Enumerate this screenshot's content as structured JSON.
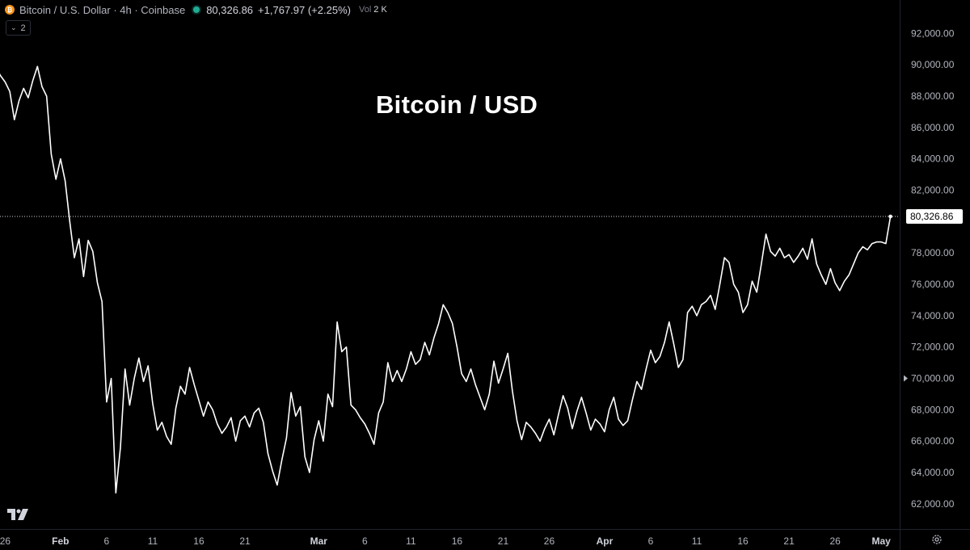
{
  "header": {
    "symbol": "Bitcoin / U.S. Dollar · 4h · Coinbase",
    "coin_icon": "bitcoin-icon",
    "last_price": "80,326.86",
    "change": "+1,767.97 (+2.25%)",
    "volume_label": "Vol",
    "volume_value": "2 K",
    "indicator_count": "2"
  },
  "overlay_title": "Bitcoin / USD",
  "colors": {
    "background": "#000000",
    "line": "#ffffff",
    "axis_text": "#b2b5be",
    "live_dot": "#22ab94",
    "coin": "#f7931a"
  },
  "chart_data": {
    "type": "line",
    "title": "Bitcoin / USD",
    "xlabel": "",
    "ylabel": "",
    "x_axis": "date (2025, 4h candles)",
    "x_range": [
      "2025-01-25",
      "2025-05-03"
    ],
    "ylim": [
      60500,
      93000
    ],
    "grid": false,
    "x_ticks": [
      {
        "label": "26",
        "date": "2025-01-26"
      },
      {
        "label": "Feb",
        "date": "2025-02-01",
        "bold": true
      },
      {
        "label": "6",
        "date": "2025-02-06"
      },
      {
        "label": "11",
        "date": "2025-02-11"
      },
      {
        "label": "16",
        "date": "2025-02-16"
      },
      {
        "label": "21",
        "date": "2025-02-21"
      },
      {
        "label": "Mar",
        "date": "2025-03-01",
        "bold": true
      },
      {
        "label": "6",
        "date": "2025-03-06"
      },
      {
        "label": "11",
        "date": "2025-03-11"
      },
      {
        "label": "16",
        "date": "2025-03-16"
      },
      {
        "label": "21",
        "date": "2025-03-21"
      },
      {
        "label": "26",
        "date": "2025-03-26"
      },
      {
        "label": "Apr",
        "date": "2025-04-01",
        "bold": true
      },
      {
        "label": "6",
        "date": "2025-04-06"
      },
      {
        "label": "11",
        "date": "2025-04-11"
      },
      {
        "label": "16",
        "date": "2025-04-16"
      },
      {
        "label": "21",
        "date": "2025-04-21"
      },
      {
        "label": "26",
        "date": "2025-04-26"
      },
      {
        "label": "May",
        "date": "2025-05-01",
        "bold": true
      }
    ],
    "y_ticks": [
      {
        "label": "62,000.00",
        "value": 62000
      },
      {
        "label": "64,000.00",
        "value": 64000
      },
      {
        "label": "66,000.00",
        "value": 66000
      },
      {
        "label": "68,000.00",
        "value": 68000
      },
      {
        "label": "70,000.00",
        "value": 70000
      },
      {
        "label": "72,000.00",
        "value": 72000
      },
      {
        "label": "74,000.00",
        "value": 74000
      },
      {
        "label": "76,000.00",
        "value": 76000
      },
      {
        "label": "78,000.00",
        "value": 78000
      },
      {
        "label": "82,000.00",
        "value": 82000
      },
      {
        "label": "84,000.00",
        "value": 84000
      },
      {
        "label": "86,000.00",
        "value": 86000
      },
      {
        "label": "88,000.00",
        "value": 88000
      },
      {
        "label": "90,000.00",
        "value": 90000
      },
      {
        "label": "92,000.00",
        "value": 92000
      }
    ],
    "last_value": 80326.86,
    "last_value_label": "80,326.86",
    "series": [
      {
        "points": [
          [
            "2025-01-25 00:00",
            89800
          ],
          [
            "2025-01-25 12:00",
            89300
          ],
          [
            "2025-01-26 00:00",
            88900
          ],
          [
            "2025-01-26 12:00",
            88300
          ],
          [
            "2025-01-27 00:00",
            86500
          ],
          [
            "2025-01-27 12:00",
            87700
          ],
          [
            "2025-01-28 00:00",
            88500
          ],
          [
            "2025-01-28 12:00",
            87900
          ],
          [
            "2025-01-29 00:00",
            89000
          ],
          [
            "2025-01-29 12:00",
            89900
          ],
          [
            "2025-01-30 00:00",
            88600
          ],
          [
            "2025-01-30 12:00",
            88000
          ],
          [
            "2025-01-31 00:00",
            84300
          ],
          [
            "2025-01-31 12:00",
            82700
          ],
          [
            "2025-02-01 00:00",
            84000
          ],
          [
            "2025-02-01 12:00",
            82600
          ],
          [
            "2025-02-02 00:00",
            80000
          ],
          [
            "2025-02-02 12:00",
            77700
          ],
          [
            "2025-02-03 00:00",
            78900
          ],
          [
            "2025-02-03 12:00",
            76500
          ],
          [
            "2025-02-04 00:00",
            78800
          ],
          [
            "2025-02-04 12:00",
            78100
          ],
          [
            "2025-02-05 00:00",
            76100
          ],
          [
            "2025-02-05 12:00",
            74900
          ],
          [
            "2025-02-06 00:00",
            68500
          ],
          [
            "2025-02-06 12:00",
            70000
          ],
          [
            "2025-02-07 00:00",
            62700
          ],
          [
            "2025-02-07 12:00",
            65600
          ],
          [
            "2025-02-08 00:00",
            70600
          ],
          [
            "2025-02-08 12:00",
            68300
          ],
          [
            "2025-02-09 00:00",
            70000
          ],
          [
            "2025-02-09 12:00",
            71300
          ],
          [
            "2025-02-10 00:00",
            69800
          ],
          [
            "2025-02-10 12:00",
            70800
          ],
          [
            "2025-02-11 00:00",
            68400
          ],
          [
            "2025-02-11 12:00",
            66700
          ],
          [
            "2025-02-12 00:00",
            67200
          ],
          [
            "2025-02-12 12:00",
            66300
          ],
          [
            "2025-02-13 00:00",
            65800
          ],
          [
            "2025-02-13 12:00",
            68100
          ],
          [
            "2025-02-14 00:00",
            69500
          ],
          [
            "2025-02-14 12:00",
            69000
          ],
          [
            "2025-02-15 00:00",
            70700
          ],
          [
            "2025-02-15 12:00",
            69600
          ],
          [
            "2025-02-16 00:00",
            68600
          ],
          [
            "2025-02-16 12:00",
            67600
          ],
          [
            "2025-02-17 00:00",
            68500
          ],
          [
            "2025-02-17 12:00",
            68000
          ],
          [
            "2025-02-18 00:00",
            67100
          ],
          [
            "2025-02-18 12:00",
            66500
          ],
          [
            "2025-02-19 00:00",
            66900
          ],
          [
            "2025-02-19 12:00",
            67500
          ],
          [
            "2025-02-20 00:00",
            66000
          ],
          [
            "2025-02-20 12:00",
            67300
          ],
          [
            "2025-02-21 00:00",
            67600
          ],
          [
            "2025-02-21 12:00",
            66900
          ],
          [
            "2025-02-22 00:00",
            67800
          ],
          [
            "2025-02-22 12:00",
            68100
          ],
          [
            "2025-02-23 00:00",
            67200
          ],
          [
            "2025-02-23 12:00",
            65200
          ],
          [
            "2025-02-24 00:00",
            64100
          ],
          [
            "2025-02-24 12:00",
            63200
          ],
          [
            "2025-02-25 00:00",
            64800
          ],
          [
            "2025-02-25 12:00",
            66200
          ],
          [
            "2025-02-26 00:00",
            69100
          ],
          [
            "2025-02-26 12:00",
            67600
          ],
          [
            "2025-02-27 00:00",
            68200
          ],
          [
            "2025-02-27 12:00",
            65000
          ],
          [
            "2025-02-28 00:00",
            64000
          ],
          [
            "2025-02-28 12:00",
            66100
          ],
          [
            "2025-03-01 00:00",
            67300
          ],
          [
            "2025-03-01 12:00",
            66000
          ],
          [
            "2025-03-02 00:00",
            69000
          ],
          [
            "2025-03-02 12:00",
            68200
          ],
          [
            "2025-03-03 00:00",
            73600
          ],
          [
            "2025-03-03 12:00",
            71700
          ],
          [
            "2025-03-04 00:00",
            72000
          ],
          [
            "2025-03-04 12:00",
            68300
          ],
          [
            "2025-03-05 00:00",
            68000
          ],
          [
            "2025-03-05 12:00",
            67500
          ],
          [
            "2025-03-06 00:00",
            67100
          ],
          [
            "2025-03-06 12:00",
            66500
          ],
          [
            "2025-03-07 00:00",
            65800
          ],
          [
            "2025-03-07 12:00",
            67800
          ],
          [
            "2025-03-08 00:00",
            68500
          ],
          [
            "2025-03-08 12:00",
            71000
          ],
          [
            "2025-03-09 00:00",
            69800
          ],
          [
            "2025-03-09 12:00",
            70500
          ],
          [
            "2025-03-10 00:00",
            69800
          ],
          [
            "2025-03-10 12:00",
            70600
          ],
          [
            "2025-03-11 00:00",
            71700
          ],
          [
            "2025-03-11 12:00",
            70900
          ],
          [
            "2025-03-12 00:00",
            71200
          ],
          [
            "2025-03-12 12:00",
            72300
          ],
          [
            "2025-03-13 00:00",
            71500
          ],
          [
            "2025-03-13 12:00",
            72600
          ],
          [
            "2025-03-14 00:00",
            73500
          ],
          [
            "2025-03-14 12:00",
            74700
          ],
          [
            "2025-03-15 00:00",
            74200
          ],
          [
            "2025-03-15 12:00",
            73500
          ],
          [
            "2025-03-16 00:00",
            72000
          ],
          [
            "2025-03-16 12:00",
            70300
          ],
          [
            "2025-03-17 00:00",
            69800
          ],
          [
            "2025-03-17 12:00",
            70600
          ],
          [
            "2025-03-18 00:00",
            69600
          ],
          [
            "2025-03-18 12:00",
            68800
          ],
          [
            "2025-03-19 00:00",
            68000
          ],
          [
            "2025-03-19 12:00",
            69000
          ],
          [
            "2025-03-20 00:00",
            71100
          ],
          [
            "2025-03-20 12:00",
            69700
          ],
          [
            "2025-03-21 00:00",
            70600
          ],
          [
            "2025-03-21 12:00",
            71600
          ],
          [
            "2025-03-22 00:00",
            69200
          ],
          [
            "2025-03-22 12:00",
            67300
          ],
          [
            "2025-03-23 00:00",
            66100
          ],
          [
            "2025-03-23 12:00",
            67200
          ],
          [
            "2025-03-24 00:00",
            66900
          ],
          [
            "2025-03-24 12:00",
            66500
          ],
          [
            "2025-03-25 00:00",
            66000
          ],
          [
            "2025-03-25 12:00",
            66800
          ],
          [
            "2025-03-26 00:00",
            67400
          ],
          [
            "2025-03-26 12:00",
            66400
          ],
          [
            "2025-03-27 00:00",
            67700
          ],
          [
            "2025-03-27 12:00",
            68900
          ],
          [
            "2025-03-28 00:00",
            68100
          ],
          [
            "2025-03-28 12:00",
            66800
          ],
          [
            "2025-03-29 00:00",
            67900
          ],
          [
            "2025-03-29 12:00",
            68800
          ],
          [
            "2025-03-30 00:00",
            67800
          ],
          [
            "2025-03-30 12:00",
            66700
          ],
          [
            "2025-03-31 00:00",
            67400
          ],
          [
            "2025-03-31 12:00",
            67100
          ],
          [
            "2025-04-01 00:00",
            66600
          ],
          [
            "2025-04-01 12:00",
            68000
          ],
          [
            "2025-04-02 00:00",
            68800
          ],
          [
            "2025-04-02 12:00",
            67400
          ],
          [
            "2025-04-03 00:00",
            67000
          ],
          [
            "2025-04-03 12:00",
            67300
          ],
          [
            "2025-04-04 00:00",
            68600
          ],
          [
            "2025-04-04 12:00",
            69800
          ],
          [
            "2025-04-05 00:00",
            69300
          ],
          [
            "2025-04-05 12:00",
            70600
          ],
          [
            "2025-04-06 00:00",
            71800
          ],
          [
            "2025-04-06 12:00",
            71000
          ],
          [
            "2025-04-07 00:00",
            71400
          ],
          [
            "2025-04-07 12:00",
            72300
          ],
          [
            "2025-04-08 00:00",
            73600
          ],
          [
            "2025-04-08 12:00",
            72200
          ],
          [
            "2025-04-09 00:00",
            70700
          ],
          [
            "2025-04-09 12:00",
            71200
          ],
          [
            "2025-04-10 00:00",
            74200
          ],
          [
            "2025-04-10 12:00",
            74600
          ],
          [
            "2025-04-11 00:00",
            74000
          ],
          [
            "2025-04-11 12:00",
            74700
          ],
          [
            "2025-04-12 00:00",
            74900
          ],
          [
            "2025-04-12 12:00",
            75300
          ],
          [
            "2025-04-13 00:00",
            74400
          ],
          [
            "2025-04-13 12:00",
            76000
          ],
          [
            "2025-04-14 00:00",
            77700
          ],
          [
            "2025-04-14 12:00",
            77400
          ],
          [
            "2025-04-15 00:00",
            76000
          ],
          [
            "2025-04-15 12:00",
            75500
          ],
          [
            "2025-04-16 00:00",
            74200
          ],
          [
            "2025-04-16 12:00",
            74700
          ],
          [
            "2025-04-17 00:00",
            76200
          ],
          [
            "2025-04-17 12:00",
            75500
          ],
          [
            "2025-04-18 00:00",
            77300
          ],
          [
            "2025-04-18 12:00",
            79200
          ],
          [
            "2025-04-19 00:00",
            78100
          ],
          [
            "2025-04-19 12:00",
            77800
          ],
          [
            "2025-04-20 00:00",
            78300
          ],
          [
            "2025-04-20 12:00",
            77700
          ],
          [
            "2025-04-21 00:00",
            77900
          ],
          [
            "2025-04-21 12:00",
            77400
          ],
          [
            "2025-04-22 00:00",
            77800
          ],
          [
            "2025-04-22 12:00",
            78300
          ],
          [
            "2025-04-23 00:00",
            77600
          ],
          [
            "2025-04-23 12:00",
            78900
          ],
          [
            "2025-04-24 00:00",
            77300
          ],
          [
            "2025-04-24 12:00",
            76600
          ],
          [
            "2025-04-25 00:00",
            76000
          ],
          [
            "2025-04-25 12:00",
            77000
          ],
          [
            "2025-04-26 00:00",
            76100
          ],
          [
            "2025-04-26 12:00",
            75600
          ],
          [
            "2025-04-27 00:00",
            76200
          ],
          [
            "2025-04-27 12:00",
            76600
          ],
          [
            "2025-04-28 00:00",
            77300
          ],
          [
            "2025-04-28 12:00",
            78000
          ],
          [
            "2025-04-29 00:00",
            78400
          ],
          [
            "2025-04-29 12:00",
            78200
          ],
          [
            "2025-04-30 00:00",
            78600
          ],
          [
            "2025-04-30 12:00",
            78700
          ],
          [
            "2025-05-01 00:00",
            78700
          ],
          [
            "2025-05-01 12:00",
            78600
          ],
          [
            "2025-05-02 00:00",
            80326.86
          ]
        ]
      }
    ]
  }
}
